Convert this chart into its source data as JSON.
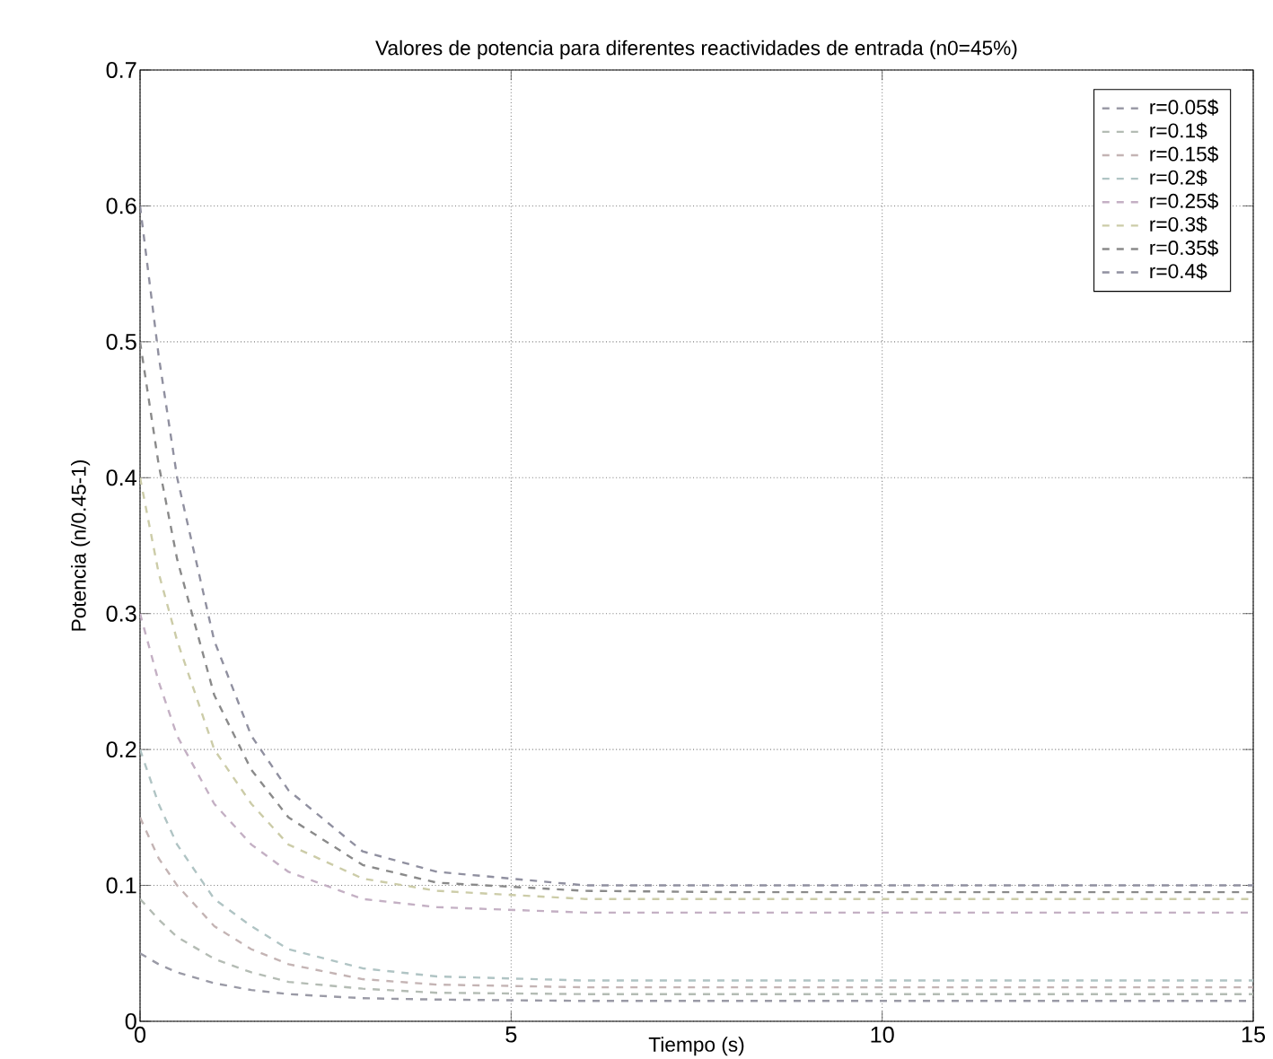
{
  "chart_data": {
    "type": "line",
    "title": "Valores de potencia para diferentes reactividades de entrada (n0=45%)",
    "xlabel": "Tiempo (s)",
    "ylabel": "Potencia (n/0.45-1)",
    "x": [
      0,
      0.25,
      0.5,
      1,
      1.5,
      2,
      3,
      4,
      6,
      8,
      10,
      12,
      15
    ],
    "xlim": [
      0,
      15
    ],
    "xticks": [
      0,
      5,
      10,
      15
    ],
    "ylim": [
      0,
      0.7
    ],
    "yticks": [
      0,
      0.1,
      0.2,
      0.3,
      0.4,
      0.5,
      0.6,
      0.7
    ],
    "grid": true,
    "legend": "top right",
    "line_style": "dashed",
    "series": [
      {
        "name": "r=0.05$",
        "color": "#9a9aa6",
        "values": [
          0.05,
          0.042,
          0.036,
          0.028,
          0.023,
          0.02,
          0.017,
          0.016,
          0.015,
          0.015,
          0.015,
          0.015,
          0.015
        ]
      },
      {
        "name": "r=0.1$",
        "color": "#b4bcb4",
        "values": [
          0.09,
          0.075,
          0.062,
          0.046,
          0.036,
          0.029,
          0.024,
          0.021,
          0.02,
          0.02,
          0.02,
          0.02,
          0.02
        ]
      },
      {
        "name": "r=0.15$",
        "color": "#c4b4b4",
        "values": [
          0.15,
          0.12,
          0.1,
          0.07,
          0.053,
          0.042,
          0.031,
          0.027,
          0.025,
          0.025,
          0.025,
          0.025,
          0.025
        ]
      },
      {
        "name": "r=0.2$",
        "color": "#b0c4c4",
        "values": [
          0.2,
          0.16,
          0.13,
          0.09,
          0.07,
          0.053,
          0.039,
          0.033,
          0.03,
          0.03,
          0.03,
          0.03,
          0.03
        ]
      },
      {
        "name": "r=0.25$",
        "color": "#c4b0c4",
        "values": [
          0.3,
          0.25,
          0.21,
          0.16,
          0.13,
          0.11,
          0.09,
          0.084,
          0.08,
          0.08,
          0.08,
          0.08,
          0.08
        ]
      },
      {
        "name": "r=0.3$",
        "color": "#cccca8",
        "values": [
          0.4,
          0.33,
          0.28,
          0.2,
          0.16,
          0.13,
          0.105,
          0.096,
          0.09,
          0.09,
          0.09,
          0.09,
          0.09
        ]
      },
      {
        "name": "r=0.35$",
        "color": "#8a8a8a",
        "values": [
          0.5,
          0.41,
          0.34,
          0.24,
          0.185,
          0.15,
          0.115,
          0.102,
          0.096,
          0.095,
          0.095,
          0.095,
          0.095
        ]
      },
      {
        "name": "r=0.4$",
        "color": "#9090a0",
        "values": [
          0.6,
          0.49,
          0.4,
          0.28,
          0.21,
          0.17,
          0.125,
          0.11,
          0.1,
          0.1,
          0.1,
          0.1,
          0.1
        ]
      }
    ]
  }
}
